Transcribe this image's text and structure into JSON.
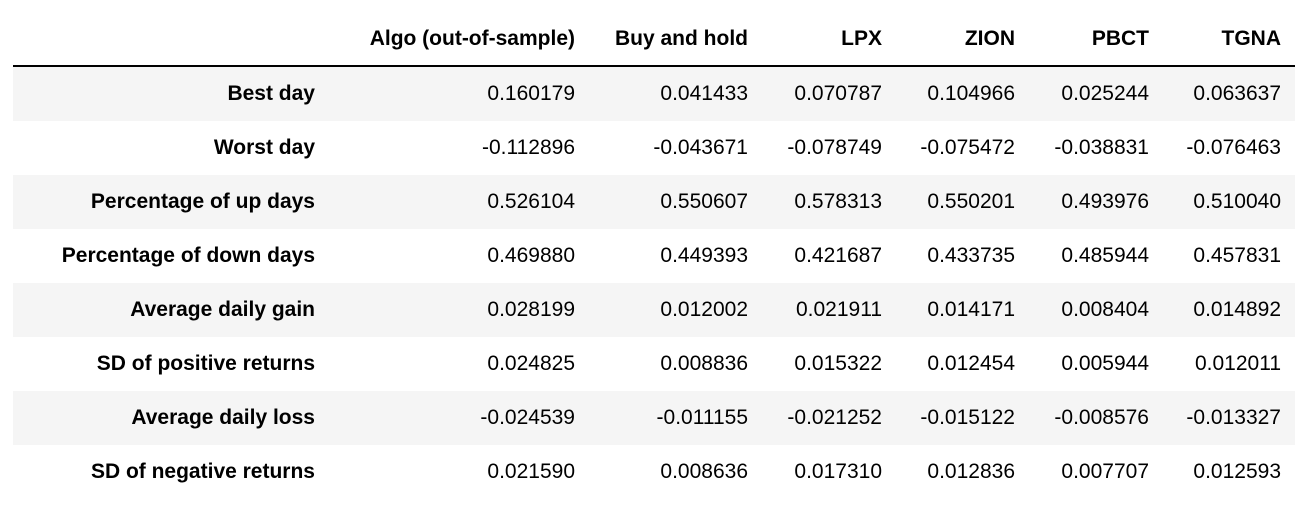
{
  "table": {
    "columns": [
      "Algo (out-of-sample)",
      "Buy and hold",
      "LPX",
      "ZION",
      "PBCT",
      "TGNA"
    ],
    "rows": [
      {
        "label": "Best day",
        "values": [
          "0.160179",
          "0.041433",
          "0.070787",
          "0.104966",
          "0.025244",
          "0.063637"
        ]
      },
      {
        "label": "Worst day",
        "values": [
          "-0.112896",
          "-0.043671",
          "-0.078749",
          "-0.075472",
          "-0.038831",
          "-0.076463"
        ]
      },
      {
        "label": "Percentage of up days",
        "values": [
          "0.526104",
          "0.550607",
          "0.578313",
          "0.550201",
          "0.493976",
          "0.510040"
        ]
      },
      {
        "label": "Percentage of down days",
        "values": [
          "0.469880",
          "0.449393",
          "0.421687",
          "0.433735",
          "0.485944",
          "0.457831"
        ]
      },
      {
        "label": "Average daily gain",
        "values": [
          "0.028199",
          "0.012002",
          "0.021911",
          "0.014171",
          "0.008404",
          "0.014892"
        ]
      },
      {
        "label": "SD of positive returns",
        "values": [
          "0.024825",
          "0.008836",
          "0.015322",
          "0.012454",
          "0.005944",
          "0.012011"
        ]
      },
      {
        "label": "Average daily loss",
        "values": [
          "-0.024539",
          "-0.011155",
          "-0.021252",
          "-0.015122",
          "-0.008576",
          "-0.013327"
        ]
      },
      {
        "label": "SD of negative returns",
        "values": [
          "0.021590",
          "0.008636",
          "0.017310",
          "0.012836",
          "0.007707",
          "0.012593"
        ]
      }
    ]
  }
}
